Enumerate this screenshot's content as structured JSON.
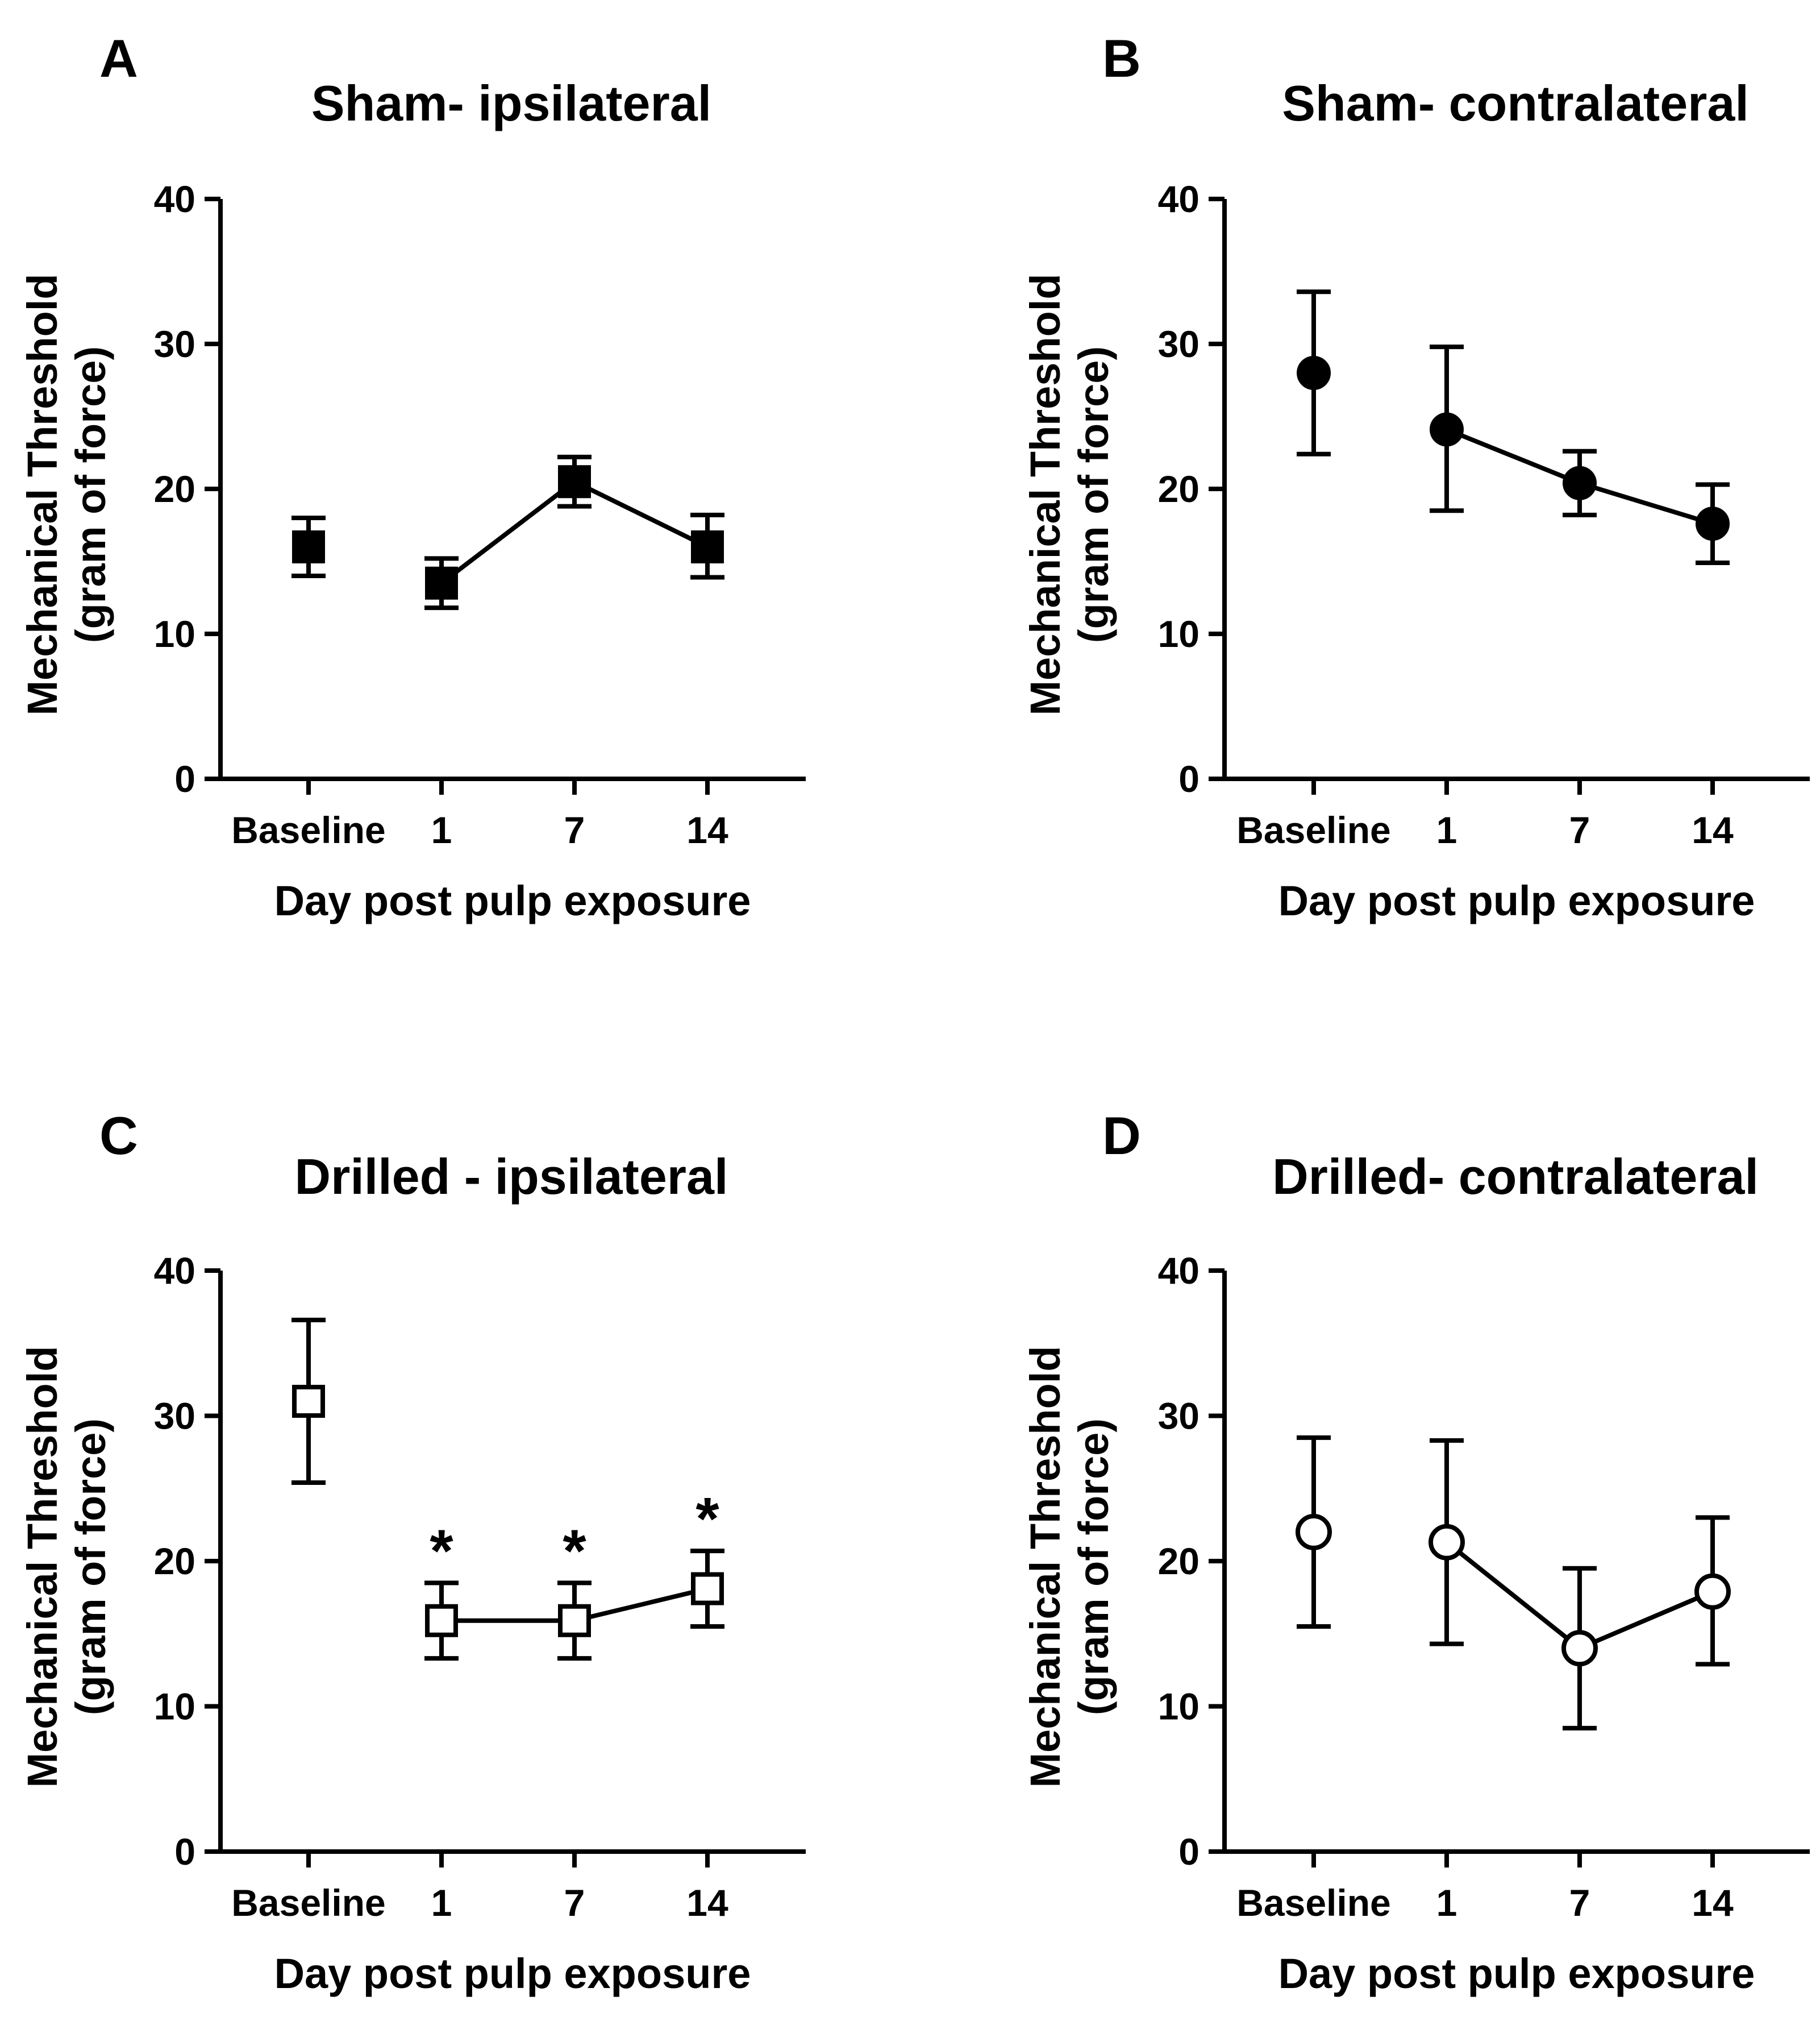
{
  "chart_data": [
    {
      "type": "line",
      "panel": "A",
      "title": "Sham- ipsilateral",
      "xlabel": "Day post pulp exposure",
      "ylabel": [
        "Mechanical Threshold",
        "(gram of force)"
      ],
      "categories": [
        "Baseline",
        "1",
        "7",
        "14"
      ],
      "ylim": [
        0,
        40
      ],
      "yticks": [
        0,
        10,
        20,
        30,
        40
      ],
      "grid": false,
      "marker": "square",
      "fill": "#000000",
      "connect_from_index": 1,
      "series": [
        {
          "values": [
            16.0,
            13.5,
            20.5,
            16.0
          ],
          "err_low": [
            14.0,
            11.8,
            18.8,
            13.9
          ],
          "err_high": [
            18.0,
            15.2,
            22.2,
            18.2
          ]
        }
      ],
      "annotations": []
    },
    {
      "type": "line",
      "panel": "B",
      "title": "Sham- contralateral",
      "xlabel": "Day post pulp exposure",
      "ylabel": [
        "Mechanical Threshold",
        "(gram of force)"
      ],
      "categories": [
        "Baseline",
        "1",
        "7",
        "14"
      ],
      "ylim": [
        0,
        40
      ],
      "yticks": [
        0,
        10,
        20,
        30,
        40
      ],
      "grid": false,
      "marker": "circle",
      "fill": "#000000",
      "connect_from_index": 1,
      "series": [
        {
          "values": [
            28.0,
            24.1,
            20.4,
            17.6
          ],
          "err_low": [
            22.4,
            18.5,
            18.2,
            14.9
          ],
          "err_high": [
            33.6,
            29.8,
            22.6,
            20.3
          ]
        }
      ],
      "annotations": []
    },
    {
      "type": "line",
      "panel": "C",
      "title": "Drilled - ipsilateral",
      "xlabel": "Day post pulp exposure",
      "ylabel": [
        "Mechanical Threshold",
        "(gram of force)"
      ],
      "categories": [
        "Baseline",
        "1",
        "7",
        "14"
      ],
      "ylim": [
        0,
        40
      ],
      "yticks": [
        0,
        10,
        20,
        30,
        40
      ],
      "grid": false,
      "marker": "square",
      "fill": "#ffffff",
      "connect_from_index": 1,
      "series": [
        {
          "values": [
            31.0,
            15.9,
            15.9,
            18.1
          ],
          "err_low": [
            25.4,
            13.3,
            13.3,
            15.5
          ],
          "err_high": [
            36.6,
            18.5,
            18.5,
            20.7
          ]
        }
      ],
      "annotations": [
        "",
        "*",
        "*",
        "*"
      ]
    },
    {
      "type": "line",
      "panel": "D",
      "title": "Drilled- contralateral",
      "xlabel": "Day post pulp exposure",
      "ylabel": [
        "Mechanical Threshold",
        "(gram of force)"
      ],
      "categories": [
        "Baseline",
        "1",
        "7",
        "14"
      ],
      "ylim": [
        0,
        40
      ],
      "yticks": [
        0,
        10,
        20,
        30,
        40
      ],
      "grid": false,
      "marker": "circle",
      "fill": "#ffffff",
      "connect_from_index": 1,
      "series": [
        {
          "values": [
            22.0,
            21.3,
            14.0,
            17.9
          ],
          "err_low": [
            15.5,
            14.3,
            8.5,
            12.9
          ],
          "err_high": [
            28.5,
            28.3,
            19.5,
            23.0
          ]
        }
      ],
      "annotations": []
    }
  ]
}
